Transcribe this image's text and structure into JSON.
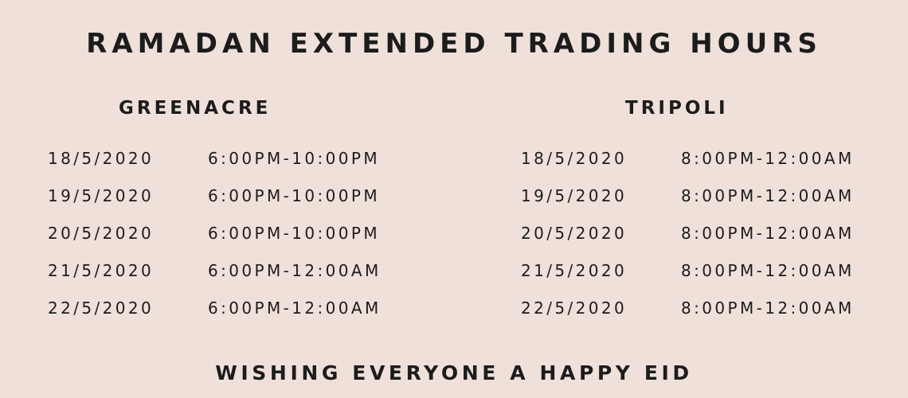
{
  "title": "RAMADAN EXTENDED TRADING HOURS",
  "stores": [
    {
      "name": "GREENACRE",
      "rows": [
        {
          "date": "18/5/2020",
          "hours": "6:00PM-10:00PM"
        },
        {
          "date": "19/5/2020",
          "hours": "6:00PM-10:00PM"
        },
        {
          "date": "20/5/2020",
          "hours": "6:00PM-10:00PM"
        },
        {
          "date": "21/5/2020",
          "hours": "6:00PM-12:00AM"
        },
        {
          "date": "22/5/2020",
          "hours": "6:00PM-12:00AM"
        }
      ]
    },
    {
      "name": "TRIPOLI",
      "rows": [
        {
          "date": "18/5/2020",
          "hours": "8:00PM-12:00AM"
        },
        {
          "date": "19/5/2020",
          "hours": "8:00PM-12:00AM"
        },
        {
          "date": "20/5/2020",
          "hours": "8:00PM-12:00AM"
        },
        {
          "date": "21/5/2020",
          "hours": "8:00PM-12:00AM"
        },
        {
          "date": "22/5/2020",
          "hours": "8:00PM-12:00AM"
        }
      ]
    }
  ],
  "footer": "WISHING EVERYONE A HAPPY EID",
  "colors": {
    "background": "#efe0da",
    "text": "#1c1c1c"
  }
}
